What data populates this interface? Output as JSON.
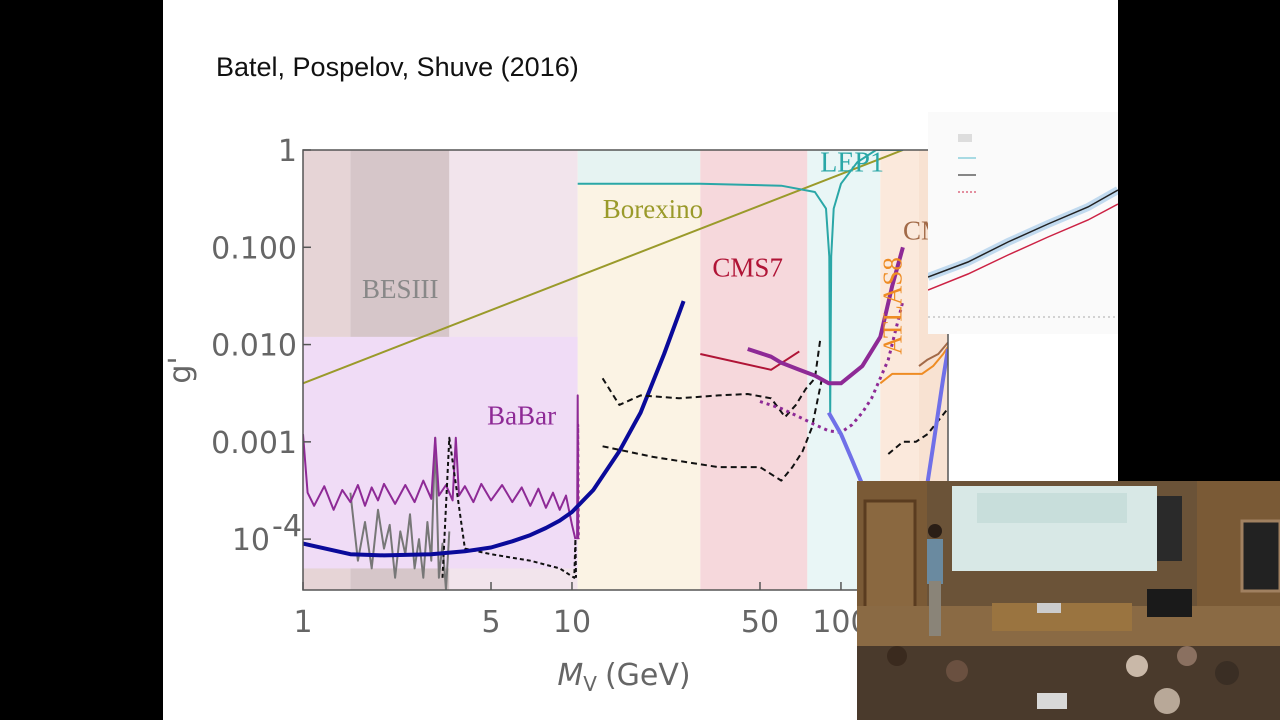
{
  "citation": "Batel, Pospelov, Shuve (2016)",
  "chart_data": {
    "type": "line",
    "xscale": "log",
    "yscale": "log",
    "xlabel": "M_V (GeV)",
    "xlabel_main": "M",
    "xlabel_sub": "V",
    "xlabel_unit": "(GeV)",
    "ylabel": "g'",
    "xlim": [
      1,
      250
    ],
    "ylim": [
      3e-05,
      1
    ],
    "xticks": [
      {
        "value": 1,
        "label": "1"
      },
      {
        "value": 5,
        "label": "5"
      },
      {
        "value": 10,
        "label": "10"
      },
      {
        "value": 50,
        "label": "50"
      },
      {
        "value": 100,
        "label": "100"
      }
    ],
    "yticks": [
      {
        "value": 1,
        "label": "1"
      },
      {
        "value": 0.1,
        "label": "0.100"
      },
      {
        "value": 0.01,
        "label": "0.010"
      },
      {
        "value": 0.001,
        "label": "0.001"
      },
      {
        "value": 0.0001,
        "label": "10",
        "exp": "-4"
      }
    ],
    "regions": [
      {
        "name": "BESIII",
        "x": [
          1,
          1.5
        ],
        "color": "#e6d4d6"
      },
      {
        "name": "BESIII",
        "x": [
          1.5,
          3.5
        ],
        "color": "#d6c6c9"
      },
      {
        "name": "BESIII",
        "x": [
          3.5,
          10.5
        ],
        "color": "#f2e4ec"
      },
      {
        "name": "BaBar",
        "x": [
          1,
          10.5
        ],
        "y": [
          5e-05,
          0.012
        ],
        "color": "#f0dcf6"
      },
      {
        "name": "Borexino",
        "x": [
          10.5,
          30
        ],
        "color": "#fbf3e4"
      },
      {
        "name": "LEP1",
        "x": [
          10.5,
          30
        ],
        "y": [
          0.45,
          1
        ],
        "color": "#e6f3f2"
      },
      {
        "name": "CMS7",
        "x": [
          30,
          75
        ],
        "color": "#f6d8dc"
      },
      {
        "name": "LEP1",
        "x": [
          75,
          140
        ],
        "color": "#e9f6f6"
      },
      {
        "name": "ATLAS8",
        "x": [
          140,
          195
        ],
        "color": "#fbe9dc"
      },
      {
        "name": "CMS8",
        "x": [
          195,
          250
        ],
        "color": "#f8e2d2"
      }
    ],
    "labels": [
      {
        "text": "BESIII",
        "x": 2.3,
        "y": 0.03,
        "color": "#888888",
        "size": 27
      },
      {
        "text": "BaBar",
        "x": 6.5,
        "y": 0.0015,
        "color": "#8e2a96",
        "size": 27
      },
      {
        "text": "Borexino",
        "x": 20,
        "y": 0.2,
        "color": "#9a9a2a",
        "size": 27
      },
      {
        "text": "LEP1",
        "x": 110,
        "y": 0.6,
        "color": "#2aa7a7",
        "size": 28
      },
      {
        "text": "CMS7",
        "x": 45,
        "y": 0.05,
        "color": "#b01436",
        "size": 27
      },
      {
        "text": "ATLAS8",
        "x": 168,
        "y": 0.025,
        "color": "#ee8c24",
        "size": 27,
        "rotate": -90
      },
      {
        "text": "CMS8",
        "x": 230,
        "y": 0.12,
        "color": "#a26a48",
        "size": 27
      },
      {
        "text": "M",
        "x": 170,
        "y": 0.0001,
        "color": "#111111",
        "size": 28,
        "sub": "V",
        "tail": " / "
      }
    ],
    "series": [
      {
        "name": "Borexino",
        "color": "#9a9a2a",
        "width": 2,
        "dash": "",
        "x": [
          1,
          170
        ],
        "y": [
          0.004,
          1
        ]
      },
      {
        "name": "LEP1",
        "color": "#2aa7a7",
        "width": 2,
        "dash": "",
        "x": [
          10.5,
          30,
          60,
          80,
          88,
          90.5,
          91.2,
          92,
          94,
          100,
          115,
          135,
          170
        ],
        "y": [
          0.45,
          0.45,
          0.43,
          0.37,
          0.25,
          0.08,
          0.002,
          0.08,
          0.25,
          0.45,
          0.75,
          1,
          1
        ]
      },
      {
        "name": "CMS7",
        "color": "#b01436",
        "width": 2,
        "dash": "",
        "x": [
          30,
          55,
          70
        ],
        "y": [
          0.008,
          0.0055,
          0.0085
        ]
      },
      {
        "name": "ATLAS8",
        "color": "#ee8c24",
        "width": 2,
        "dash": "",
        "x": [
          140,
          155,
          175,
          200,
          220,
          240,
          250
        ],
        "y": [
          0.004,
          0.005,
          0.005,
          0.005,
          0.006,
          0.008,
          0.0095
        ]
      },
      {
        "name": "CMS8",
        "color": "#a26a48",
        "width": 2,
        "dash": "",
        "x": [
          195,
          210,
          230,
          250
        ],
        "y": [
          0.006,
          0.007,
          0.008,
          0.0105
        ]
      },
      {
        "name": "BESIII",
        "color": "#777777",
        "width": 2,
        "dash": "",
        "x": [
          1.5,
          1.6,
          1.7,
          1.8,
          1.9,
          2.0,
          2.1,
          2.2,
          2.3,
          2.4,
          2.5,
          2.6,
          2.7,
          2.8,
          2.9,
          3.0,
          3.1,
          3.2,
          3.3,
          3.4,
          3.5
        ],
        "y": [
          0.0003,
          6e-05,
          0.00015,
          5e-05,
          0.0002,
          8e-05,
          0.00014,
          4e-05,
          0.00012,
          7e-05,
          0.00018,
          5e-05,
          0.0001,
          4e-05,
          0.00015,
          6e-05,
          0.0011,
          4e-05,
          9e-05,
          3e-05,
          0.00012
        ]
      },
      {
        "name": "BaBar",
        "color": "#8e2a96",
        "width": 2,
        "dash": "",
        "x": [
          1,
          1.04,
          1.1,
          1.2,
          1.3,
          1.4,
          1.5,
          1.6,
          1.7,
          1.8,
          1.9,
          2.0,
          2.2,
          2.4,
          2.6,
          2.8,
          3.0,
          3.1,
          3.2,
          3.4,
          3.6,
          3.7,
          3.8,
          4.0,
          4.3,
          4.6,
          5.0,
          5.5,
          6.0,
          6.5,
          7.0,
          7.5,
          8.0,
          8.5,
          9.0,
          9.5,
          10.0,
          10.3
        ],
        "y": [
          0.0012,
          0.0003,
          0.00022,
          0.00035,
          0.0002,
          0.00032,
          0.00024,
          0.00036,
          0.00022,
          0.00034,
          0.00025,
          0.00037,
          0.00023,
          0.00036,
          0.00024,
          0.0004,
          0.00026,
          0.0011,
          0.00028,
          0.00036,
          0.00025,
          0.0011,
          0.00028,
          0.00035,
          0.00024,
          0.00037,
          0.00025,
          0.00036,
          0.00024,
          0.00034,
          0.00022,
          0.00033,
          0.00021,
          0.0003,
          0.0002,
          0.00028,
          0.00014,
          0.0001
        ]
      },
      {
        "name": "BaBar",
        "color": "#8e2a96",
        "width": 2,
        "dash": "",
        "x": [
          10.45,
          10.5,
          10.55
        ],
        "y": [
          0.0001,
          0.003,
          0.0001
        ]
      },
      {
        "name": "",
        "color": "#111111",
        "width": 2,
        "dash": "4 3",
        "x": [
          3.3,
          3.5,
          4.0,
          5.0,
          7.0,
          9.0,
          10.2,
          10.3,
          10.35
        ],
        "y": [
          4e-05,
          0.0011,
          8e-05,
          7e-05,
          6e-05,
          5e-05,
          4e-05,
          0.0001,
          4e-05
        ]
      },
      {
        "name": "",
        "color": "#8e2a96",
        "width": 2,
        "dash": "3 3",
        "x": [
          10.5,
          10.55,
          10.6
        ],
        "y": [
          0.0001,
          0.0015,
          0.0001
        ]
      },
      {
        "name": "",
        "color": "#0a0a9a",
        "width": 4,
        "dash": "",
        "x": [
          1,
          1.5,
          2,
          3,
          4,
          5,
          6,
          7,
          8,
          9,
          10,
          12,
          15,
          18,
          22,
          26
        ],
        "y": [
          9e-05,
          7e-05,
          6.8e-05,
          7e-05,
          7.5e-05,
          8.2e-05,
          9.5e-05,
          0.00011,
          0.00013,
          0.000155,
          0.00019,
          0.00032,
          0.0008,
          0.002,
          0.008,
          0.028
        ]
      },
      {
        "name": "",
        "color": "#111111",
        "width": 2,
        "dash": "6 4",
        "x": [
          13,
          15,
          18,
          25,
          35,
          45,
          55,
          62,
          68,
          74,
          80,
          84
        ],
        "y": [
          0.0045,
          0.0024,
          0.003,
          0.0028,
          0.003,
          0.0031,
          0.0028,
          0.0018,
          0.0024,
          0.0035,
          0.0045,
          0.012
        ]
      },
      {
        "name": "",
        "color": "#111111",
        "width": 2,
        "dash": "6 4",
        "x": [
          13,
          20,
          35,
          50,
          60,
          66,
          72,
          78,
          85
        ],
        "y": [
          0.0009,
          0.0007,
          0.00055,
          0.00055,
          0.0004,
          0.00055,
          0.0008,
          0.0014,
          0.0045
        ]
      },
      {
        "name": "",
        "color": "#111111",
        "width": 2,
        "dash": "6 4",
        "x": [
          150,
          170,
          190,
          210,
          250
        ],
        "y": [
          0.00075,
          0.001,
          0.001,
          0.0012,
          0.0022
        ]
      },
      {
        "name": "",
        "color": "#8e2a96",
        "width": 4,
        "dash": "",
        "x": [
          45,
          55,
          60,
          70,
          80,
          90,
          100,
          120,
          140,
          155,
          170
        ],
        "y": [
          0.009,
          0.0075,
          0.0065,
          0.0055,
          0.0048,
          0.004,
          0.004,
          0.006,
          0.012,
          0.04,
          0.1
        ]
      },
      {
        "name": "",
        "color": "#8e2a96",
        "width": 3,
        "dash": "3 4",
        "x": [
          50,
          60,
          70,
          80,
          90,
          100,
          110,
          120,
          130,
          150,
          170
        ],
        "y": [
          0.0026,
          0.0022,
          0.0018,
          0.0015,
          0.0013,
          0.00125,
          0.0015,
          0.002,
          0.0028,
          0.007,
          0.028
        ]
      },
      {
        "name": "",
        "color": "#7070e8",
        "width": 4,
        "dash": "",
        "x": [
          90,
          100,
          110,
          125,
          145,
          170,
          190,
          205,
          220,
          240,
          250
        ],
        "y": [
          0.002,
          0.0012,
          0.00065,
          0.00028,
          0.00015,
          0.00016,
          0.00018,
          0.00025,
          0.0009,
          0.0045,
          0.009
        ]
      }
    ]
  }
}
